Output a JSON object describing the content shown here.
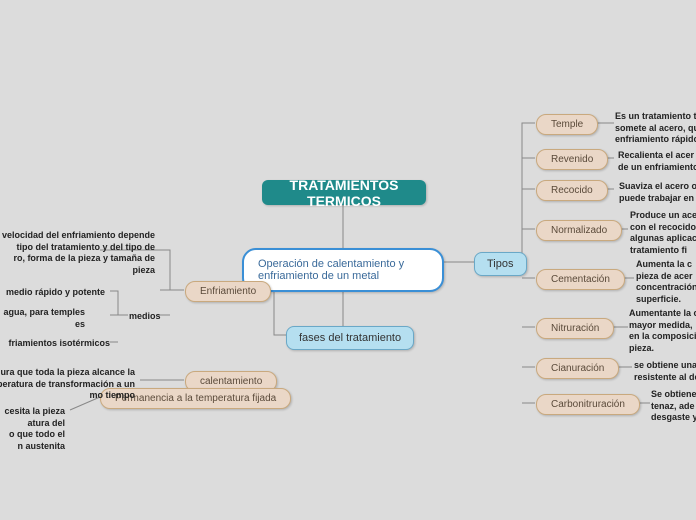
{
  "title": "TRATAMIENTOS TERMICOS",
  "description": "Operación de calentamiento y enfriamiento de un metal",
  "tipos_label": "Tipos",
  "fases_label": "fases del tratamiento",
  "tipos": [
    {
      "name": "Temple",
      "desc": "Es un tratamiento t\nsomete al acero, qu\nenfriamiento rápido"
    },
    {
      "name": "Revenido",
      "desc": "Recalienta el acer\nde un enfriamiento"
    },
    {
      "name": "Recocido",
      "desc": "Suaviza el acero o\npuede trabajar en"
    },
    {
      "name": "Normalizado",
      "desc": "Produce un acer\ncon el recocido\nalgunas aplicaci\ntratamiento fi"
    },
    {
      "name": "Cementación",
      "desc": "Aumenta la c\npieza de acer\nconcentración\nsuperficie."
    },
    {
      "name": "Nitruración",
      "desc": "Aumentante la o\nmayor medida,\nen la composici\npieza."
    },
    {
      "name": "Cianuración",
      "desc": "se obtiene una\nresistente al de"
    },
    {
      "name": "Carbonitruración",
      "desc": "Se obtiene\ntenaz, ade\ndesgaste y"
    }
  ],
  "fases": [
    {
      "name": "Enfriamiento"
    },
    {
      "name": "calentamiento"
    },
    {
      "name": "Permanencia a la temperatura fijada"
    }
  ],
  "enfriamiento_desc": "velocidad del enfriamiento depende\ntipo del tratamiento y del tipo de\nro, forma de la pieza y tamaña de\npieza",
  "medios_label": "medios",
  "medios": [
    "medio rápido y potente",
    "agua, para temples\nes",
    "friamientos isotérmicos"
  ],
  "calentamiento_desc": "ura que toda la pieza alcance la\nperatura de transformación a un\nmo tiempo",
  "permanencia_desc": "cesita la pieza\natura del\no que todo el\nn austenita",
  "colors": {
    "bg": "#dcdcdc",
    "title_bg": "#1f8a8a",
    "desc_border": "#3a8fd6",
    "hub_bg": "#b5dff0",
    "cat_bg": "#ead7c7",
    "connector": "#9a9a9a"
  }
}
